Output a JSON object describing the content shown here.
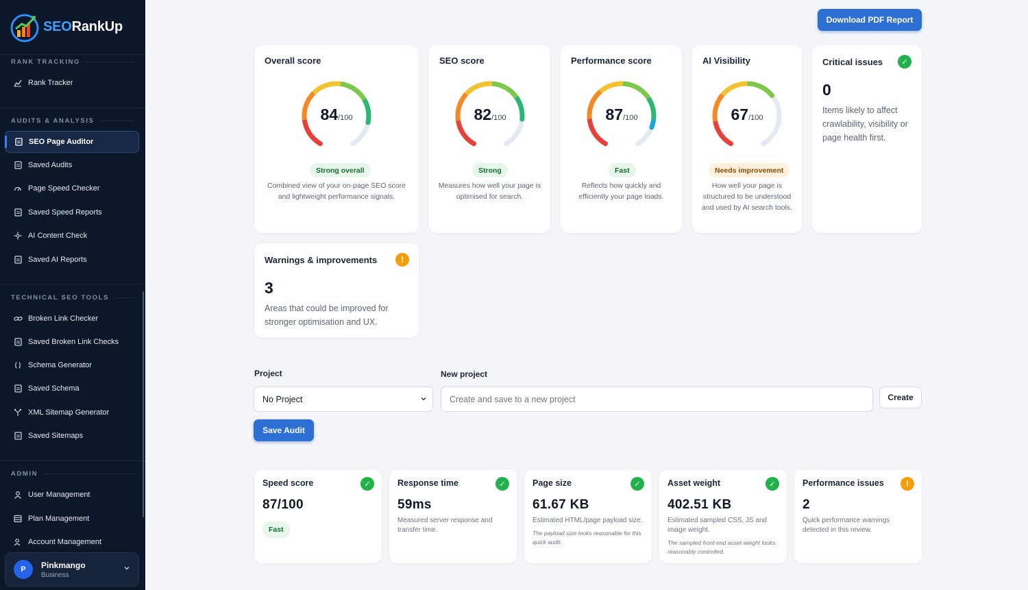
{
  "brand": {
    "name_part1": "SEO",
    "name_part2": "RankUp"
  },
  "sidebar": {
    "sections": [
      {
        "title": "RANK TRACKING"
      },
      {
        "title": "AUDITS & ANALYSIS"
      },
      {
        "title": "TECHNICAL SEO TOOLS"
      },
      {
        "title": "ADMIN"
      }
    ],
    "items": [
      {
        "label": "Rank Tracker",
        "icon": "chart-line-icon"
      },
      {
        "label": "SEO Page Auditor",
        "icon": "document-icon",
        "active": true
      },
      {
        "label": "Saved Audits",
        "icon": "document-icon"
      },
      {
        "label": "Page Speed Checker",
        "icon": "speedometer-icon"
      },
      {
        "label": "Saved Speed Reports",
        "icon": "document-icon"
      },
      {
        "label": "AI Content Check",
        "icon": "sparkle-icon"
      },
      {
        "label": "Saved AI Reports",
        "icon": "document-icon"
      },
      {
        "label": "Broken Link Checker",
        "icon": "link-icon"
      },
      {
        "label": "Saved Broken Link Checks",
        "icon": "document-icon"
      },
      {
        "label": "Schema Generator",
        "icon": "braces-icon"
      },
      {
        "label": "Saved Schema",
        "icon": "document-icon"
      },
      {
        "label": "XML Sitemap Generator",
        "icon": "sitemap-icon"
      },
      {
        "label": "Saved Sitemaps",
        "icon": "document-icon"
      },
      {
        "label": "User Management",
        "icon": "user-icon"
      },
      {
        "label": "Plan Management",
        "icon": "list-icon"
      },
      {
        "label": "Account Management",
        "icon": "users-icon"
      }
    ],
    "user": {
      "initial": "P",
      "name": "Pinkmango",
      "plan": "Business"
    }
  },
  "header": {
    "download_label": "Download PDF Report"
  },
  "scores": [
    {
      "title": "Overall score",
      "value": "84",
      "max": "/100",
      "score": 84,
      "badge": "Strong overall",
      "badge_tone": "green",
      "description": "Combined view of your on-page SEO score and lightweight performance signals."
    },
    {
      "title": "SEO score",
      "value": "82",
      "max": "/100",
      "score": 82,
      "badge": "Strong",
      "badge_tone": "green",
      "description": "Measures how well your page is optimised for search."
    },
    {
      "title": "Performance score",
      "value": "87",
      "max": "/100",
      "score": 87,
      "badge": "Fast",
      "badge_tone": "green",
      "description": "Reflects how quickly and efficiently your page loads."
    },
    {
      "title": "AI Visibility",
      "value": "67",
      "max": "/100",
      "score": 67,
      "badge": "Needs improvement",
      "badge_tone": "amber",
      "description": "How well your page is structured to be understood and used by AI search tools."
    }
  ],
  "critical": {
    "title": "Critical issues",
    "count": "0",
    "description": "Items likely to affect crawlability, visibility or page health first."
  },
  "warnings": {
    "title": "Warnings & improvements",
    "count": "3",
    "description": "Areas that could be improved for stronger optimisation and UX.",
    "icon_text": "!"
  },
  "project": {
    "label": "Project",
    "selected": "No Project",
    "new_label": "New project",
    "new_placeholder": "Create and save to a new project",
    "create_label": "Create",
    "save_label": "Save Audit"
  },
  "metrics": [
    {
      "title": "Speed score",
      "value": "87/100",
      "badge": "Fast",
      "status": "ok"
    },
    {
      "title": "Response time",
      "value": "59ms",
      "description": "Measured server response and transfer time.",
      "status": "ok"
    },
    {
      "title": "Page size",
      "value": "61.67 KB",
      "description": "Estimated HTML/page payload size.",
      "note": "The payload size looks reasonable for this quick audit.",
      "status": "ok"
    },
    {
      "title": "Asset weight",
      "value": "402.51 KB",
      "description": "Estimated sampled CSS, JS and image weight.",
      "note": "The sampled front-end asset weight looks reasonably controlled.",
      "status": "ok"
    },
    {
      "title": "Performance issues",
      "value": "2",
      "description": "Quick performance warnings detected in this review.",
      "status": "warn"
    }
  ],
  "icons": {
    "check": "✓",
    "warn": "!"
  },
  "colors": {
    "accent": "#2d6fd2",
    "sidebar_bg": "#0c1729",
    "success": "#22b24c",
    "warning": "#f59e0b"
  }
}
